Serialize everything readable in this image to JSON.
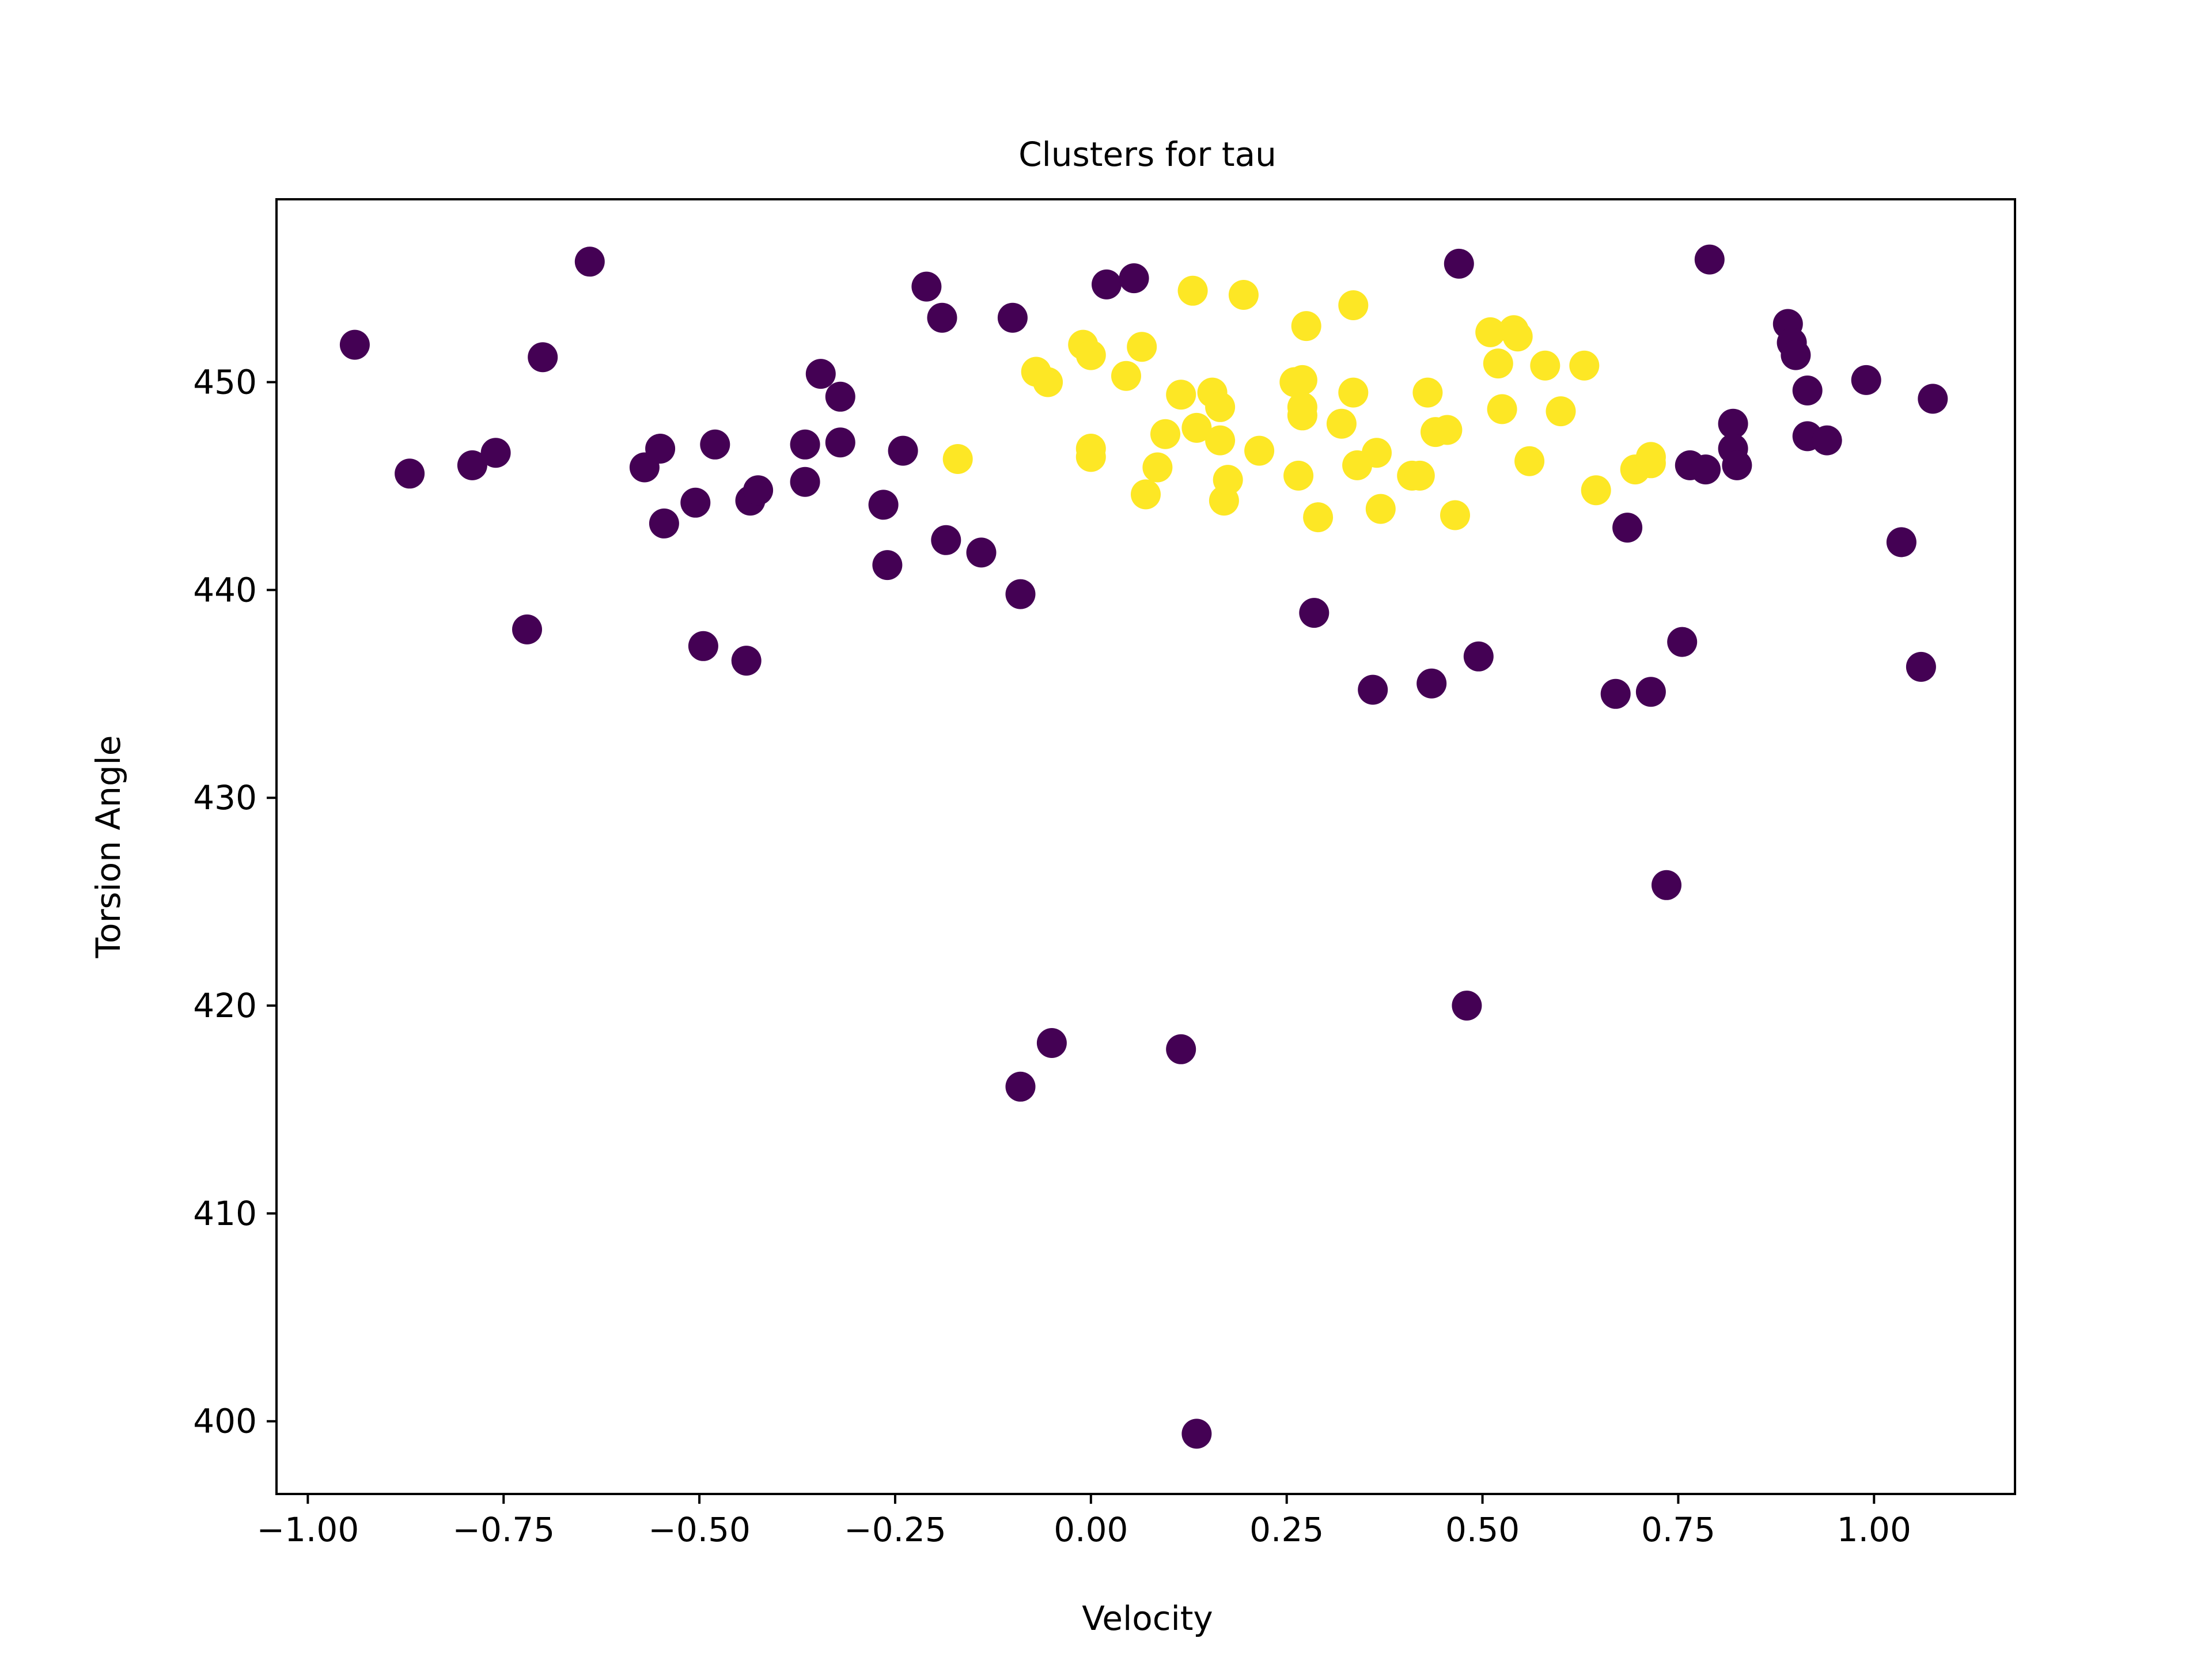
{
  "chart_data": {
    "type": "scatter",
    "title": "Clusters for tau",
    "xlabel": "Velocity",
    "ylabel": "Torsion Angle",
    "xlim": [
      -1.04,
      1.18
    ],
    "ylim": [
      396.5,
      458.8
    ],
    "xticks": [
      {
        "value": -1.0,
        "label": "−1.00"
      },
      {
        "value": -0.75,
        "label": "−0.75"
      },
      {
        "value": -0.5,
        "label": "−0.50"
      },
      {
        "value": -0.25,
        "label": "−0.25"
      },
      {
        "value": 0.0,
        "label": "0.00"
      },
      {
        "value": 0.25,
        "label": "0.25"
      },
      {
        "value": 0.5,
        "label": "0.50"
      },
      {
        "value": 0.75,
        "label": "0.75"
      },
      {
        "value": 1.0,
        "label": "1.00"
      }
    ],
    "yticks": [
      {
        "value": 400,
        "label": "400"
      },
      {
        "value": 410,
        "label": "410"
      },
      {
        "value": 420,
        "label": "420"
      },
      {
        "value": 430,
        "label": "430"
      },
      {
        "value": 440,
        "label": "440"
      },
      {
        "value": 450,
        "label": "450"
      }
    ],
    "grid": false,
    "legend": "none",
    "cluster_colors": [
      "#440154",
      "#fde725"
    ],
    "series": [
      {
        "color": "#440154",
        "points": [
          [
            -0.94,
            451.8
          ],
          [
            -0.87,
            445.6
          ],
          [
            -0.79,
            446.0
          ],
          [
            -0.76,
            446.6
          ],
          [
            -0.72,
            438.1
          ],
          [
            -0.7,
            451.2
          ],
          [
            -0.64,
            455.8
          ],
          [
            -0.57,
            445.9
          ],
          [
            -0.55,
            446.8
          ],
          [
            -0.545,
            443.2
          ],
          [
            -0.505,
            444.2
          ],
          [
            -0.495,
            437.3
          ],
          [
            -0.48,
            447.0
          ],
          [
            -0.44,
            436.6
          ],
          [
            -0.435,
            444.3
          ],
          [
            -0.425,
            444.8
          ],
          [
            -0.365,
            447.0
          ],
          [
            -0.365,
            445.2
          ],
          [
            -0.345,
            450.4
          ],
          [
            -0.32,
            447.1
          ],
          [
            -0.32,
            449.3
          ],
          [
            -0.265,
            444.1
          ],
          [
            -0.26,
            441.2
          ],
          [
            -0.24,
            446.7
          ],
          [
            -0.21,
            454.6
          ],
          [
            -0.19,
            453.1
          ],
          [
            -0.185,
            442.4
          ],
          [
            -0.14,
            441.8
          ],
          [
            -0.1,
            453.1
          ],
          [
            -0.09,
            439.8
          ],
          [
            -0.09,
            416.1
          ],
          [
            -0.05,
            418.2
          ],
          [
            0.02,
            454.7
          ],
          [
            0.055,
            455.0
          ],
          [
            0.115,
            417.9
          ],
          [
            0.135,
            399.4
          ],
          [
            0.285,
            438.9
          ],
          [
            0.36,
            435.2
          ],
          [
            0.435,
            435.5
          ],
          [
            0.47,
            455.7
          ],
          [
            0.48,
            420.0
          ],
          [
            0.495,
            436.8
          ],
          [
            0.67,
            435.0
          ],
          [
            0.685,
            443.0
          ],
          [
            0.715,
            435.1
          ],
          [
            0.735,
            425.8
          ],
          [
            0.755,
            437.5
          ],
          [
            0.765,
            446.0
          ],
          [
            0.785,
            445.8
          ],
          [
            0.79,
            455.9
          ],
          [
            0.82,
            448.0
          ],
          [
            0.82,
            446.8
          ],
          [
            0.825,
            446.0
          ],
          [
            0.89,
            452.8
          ],
          [
            0.895,
            451.9
          ],
          [
            0.9,
            451.3
          ],
          [
            0.915,
            449.6
          ],
          [
            0.915,
            447.4
          ],
          [
            0.94,
            447.2
          ],
          [
            0.99,
            450.1
          ],
          [
            1.035,
            442.3
          ],
          [
            1.06,
            436.3
          ],
          [
            1.075,
            449.2
          ]
        ]
      },
      {
        "color": "#fde725",
        "points": [
          [
            -0.17,
            446.3
          ],
          [
            -0.07,
            450.5
          ],
          [
            -0.055,
            450.0
          ],
          [
            -0.01,
            451.8
          ],
          [
            0.0,
            451.3
          ],
          [
            0.0,
            446.8
          ],
          [
            0.0,
            446.4
          ],
          [
            0.045,
            450.3
          ],
          [
            0.065,
            451.7
          ],
          [
            0.07,
            444.6
          ],
          [
            0.085,
            445.9
          ],
          [
            0.095,
            447.5
          ],
          [
            0.115,
            449.4
          ],
          [
            0.13,
            454.4
          ],
          [
            0.135,
            447.8
          ],
          [
            0.155,
            449.5
          ],
          [
            0.165,
            448.8
          ],
          [
            0.165,
            447.2
          ],
          [
            0.17,
            444.3
          ],
          [
            0.175,
            445.3
          ],
          [
            0.195,
            454.2
          ],
          [
            0.215,
            446.7
          ],
          [
            0.26,
            450.0
          ],
          [
            0.265,
            445.5
          ],
          [
            0.27,
            450.1
          ],
          [
            0.27,
            448.4
          ],
          [
            0.27,
            448.8
          ],
          [
            0.275,
            452.7
          ],
          [
            0.29,
            443.5
          ],
          [
            0.32,
            448.0
          ],
          [
            0.335,
            449.5
          ],
          [
            0.335,
            453.7
          ],
          [
            0.34,
            446.0
          ],
          [
            0.365,
            446.6
          ],
          [
            0.37,
            443.9
          ],
          [
            0.41,
            445.5
          ],
          [
            0.42,
            445.5
          ],
          [
            0.43,
            449.5
          ],
          [
            0.44,
            447.6
          ],
          [
            0.455,
            447.7
          ],
          [
            0.465,
            443.6
          ],
          [
            0.51,
            452.4
          ],
          [
            0.52,
            450.9
          ],
          [
            0.525,
            448.7
          ],
          [
            0.54,
            452.5
          ],
          [
            0.545,
            452.2
          ],
          [
            0.56,
            446.2
          ],
          [
            0.58,
            450.8
          ],
          [
            0.6,
            448.6
          ],
          [
            0.63,
            450.8
          ],
          [
            0.645,
            444.8
          ],
          [
            0.695,
            445.8
          ],
          [
            0.715,
            446.1
          ],
          [
            0.715,
            446.4
          ]
        ]
      }
    ]
  }
}
